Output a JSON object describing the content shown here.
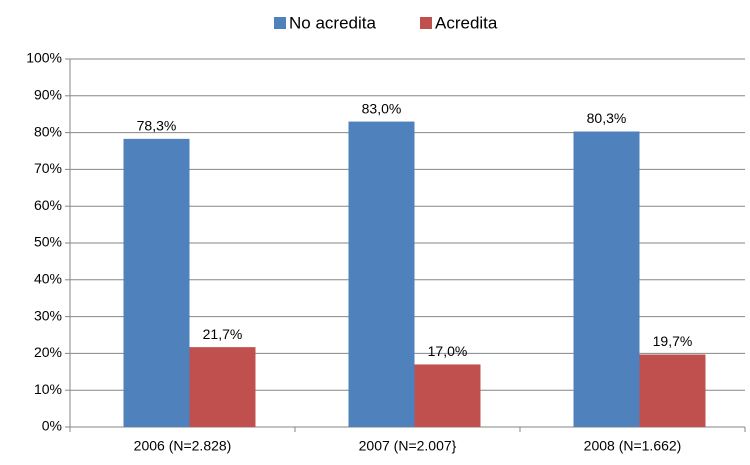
{
  "chart_data": {
    "type": "bar",
    "categories": [
      "2006 (N=2.828)",
      "2007 (N=2.007}",
      "2008 (N=1.662)"
    ],
    "series": [
      {
        "name": "No acredita",
        "color": "#4f81bd",
        "values": [
          78.3,
          83.0,
          80.3
        ],
        "value_labels": [
          "78,3%",
          "83,0%",
          "80,3%"
        ]
      },
      {
        "name": "Acredita",
        "color": "#c0504d",
        "values": [
          21.7,
          17.0,
          19.7
        ],
        "value_labels": [
          "21,7%",
          "17,0%",
          "19,7%"
        ]
      }
    ],
    "ylim": [
      0,
      100
    ],
    "yticks": [
      {
        "value": 0,
        "label": "0%"
      },
      {
        "value": 10,
        "label": "10%"
      },
      {
        "value": 20,
        "label": "20%"
      },
      {
        "value": 30,
        "label": "30%"
      },
      {
        "value": 40,
        "label": "40%"
      },
      {
        "value": 50,
        "label": "50%"
      },
      {
        "value": 60,
        "label": "60%"
      },
      {
        "value": 70,
        "label": "70%"
      },
      {
        "value": 80,
        "label": "80%"
      },
      {
        "value": 90,
        "label": "90%"
      },
      {
        "value": 100,
        "label": "100%"
      }
    ],
    "grid": true,
    "legend": "top"
  }
}
